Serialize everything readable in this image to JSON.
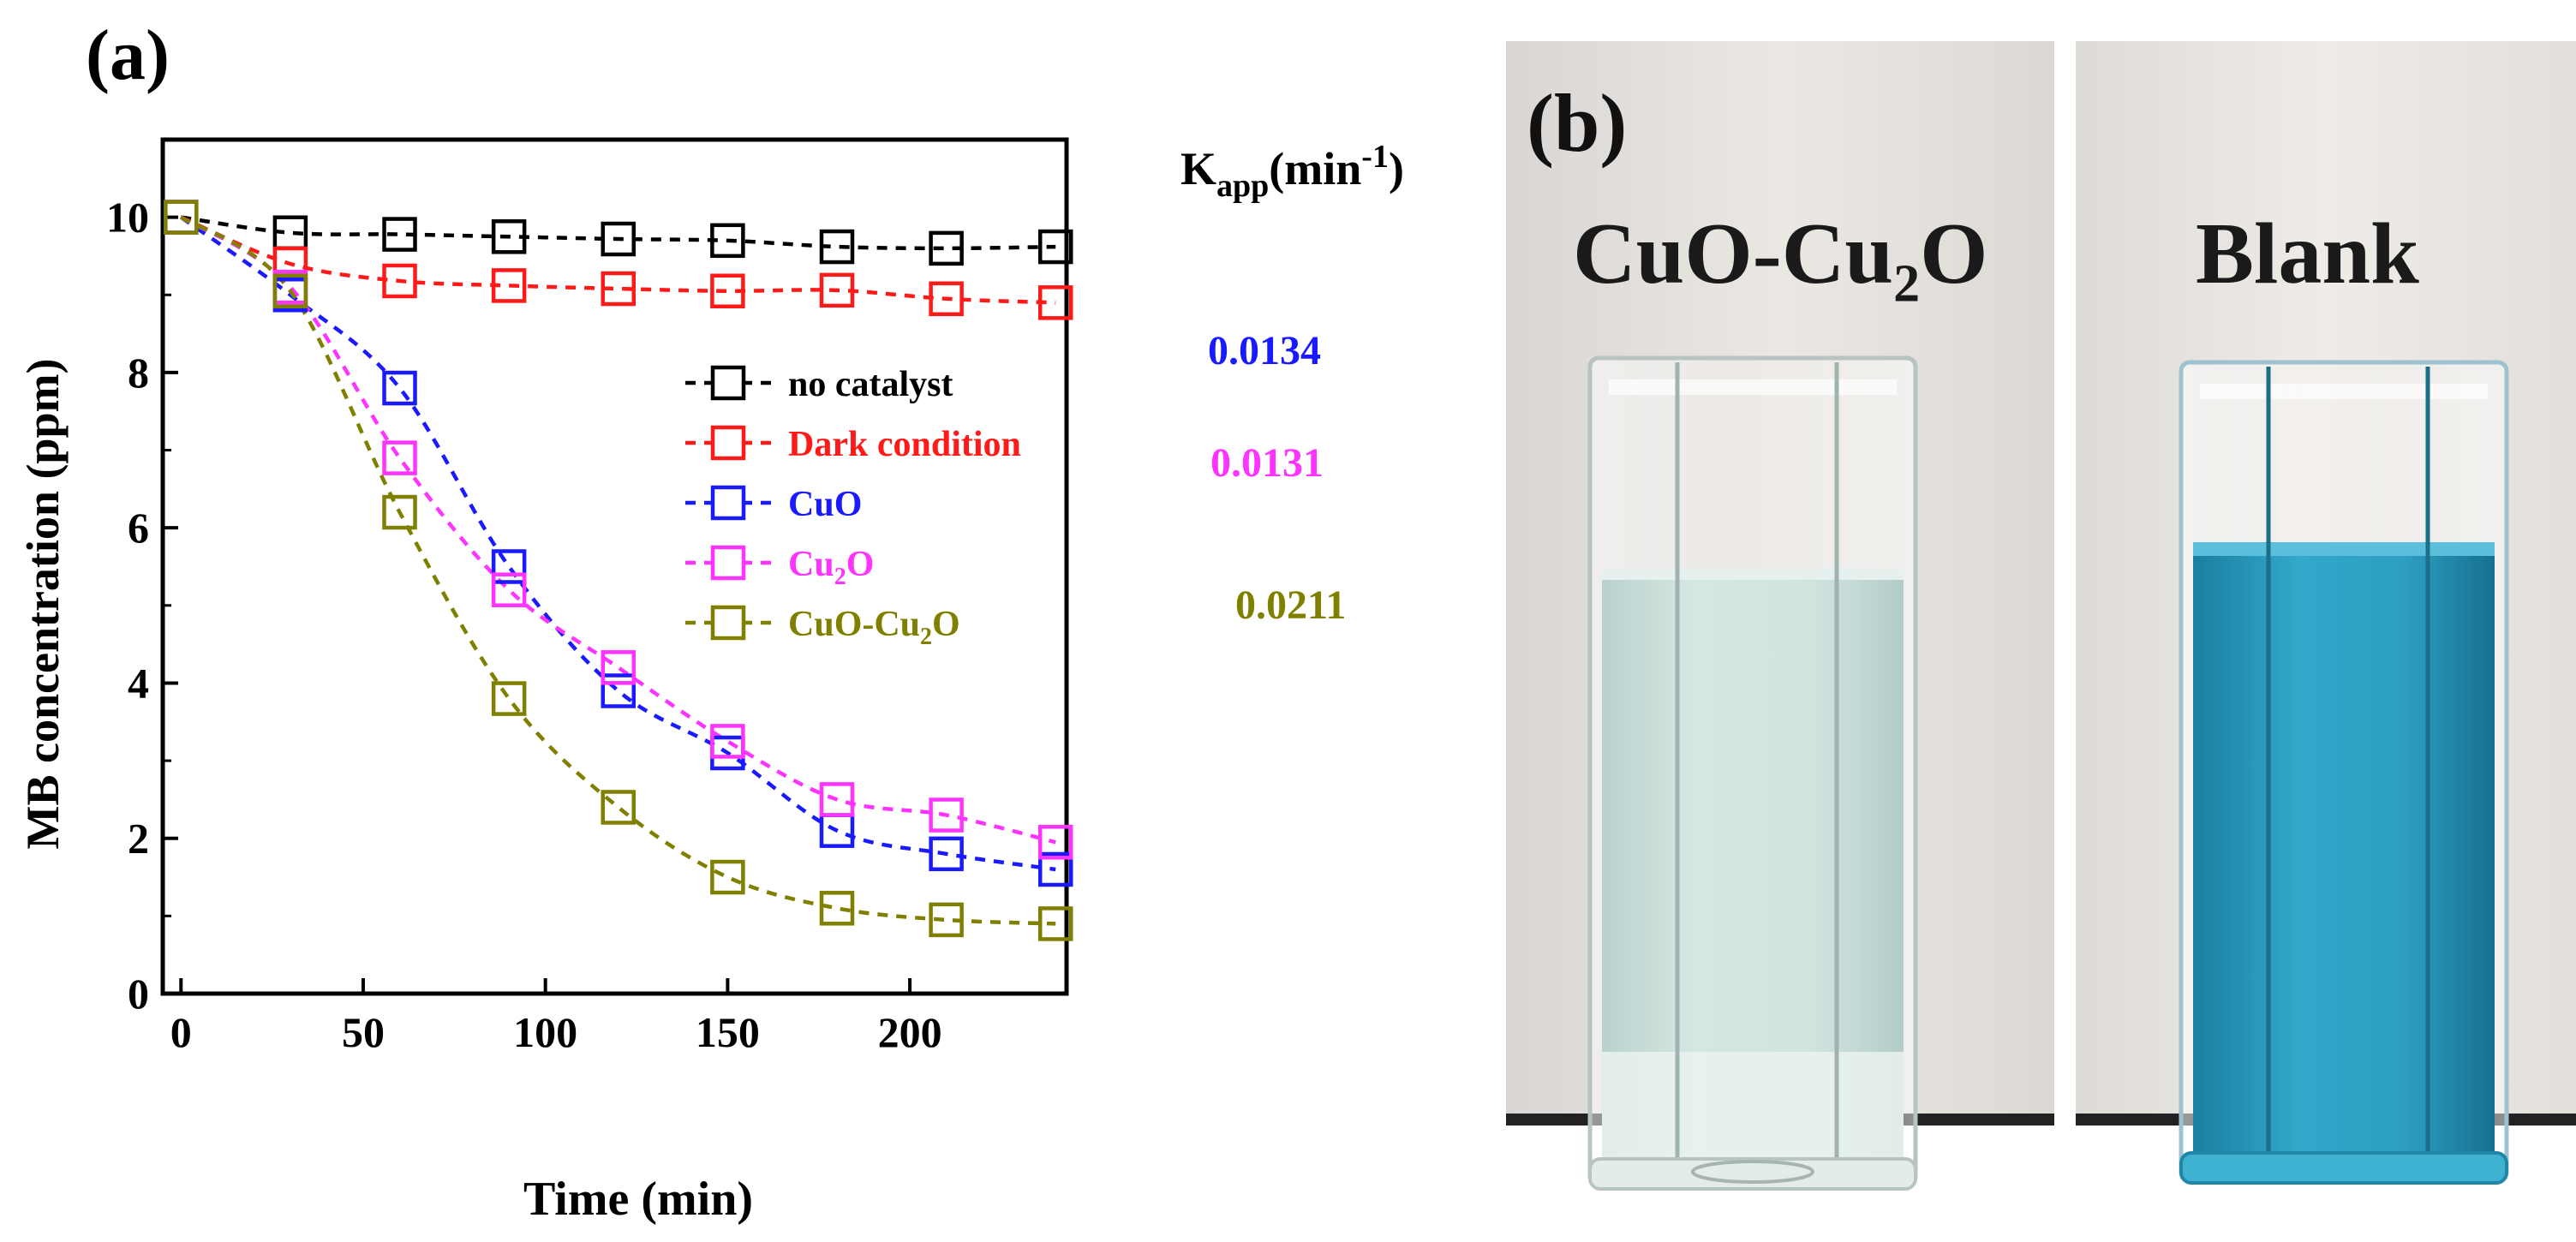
{
  "colors": {
    "no_catalyst": "#000000",
    "dark": "#ff1a1a",
    "cuo": "#1a1aff",
    "cu2o": "#ff33ff",
    "composite": "#808000",
    "mb_blue": "#2ea7c8",
    "mb_pale": "#cfe3df"
  },
  "chart_data": {
    "type": "line",
    "panel_label": "(a)",
    "xlabel": "Time (min)",
    "ylabel": "MB concentration (ppm)",
    "xlim": [
      -5,
      243
    ],
    "ylim": [
      0,
      11
    ],
    "xticks": [
      0,
      50,
      100,
      150,
      200
    ],
    "yticks": [
      0,
      2,
      4,
      6,
      8,
      10
    ],
    "x": [
      0,
      30,
      60,
      90,
      120,
      150,
      180,
      210,
      240
    ],
    "marker": "open-square",
    "line_style": "dashed",
    "series": [
      {
        "name": "no catalyst",
        "color_key": "no_catalyst",
        "values": [
          10.0,
          9.8,
          9.78,
          9.75,
          9.72,
          9.7,
          9.62,
          9.6,
          9.62
        ]
      },
      {
        "name": "Dark condition",
        "color_key": "dark",
        "values": [
          10.0,
          9.4,
          9.18,
          9.12,
          9.08,
          9.05,
          9.06,
          8.95,
          8.9
        ]
      },
      {
        "name": "CuO",
        "color_key": "cuo",
        "values": [
          10.0,
          9.0,
          7.8,
          5.5,
          3.9,
          3.1,
          2.1,
          1.8,
          1.6
        ]
      },
      {
        "name": "Cu2O",
        "name_base": "Cu",
        "name_sub": "2",
        "name_tail": "O",
        "color_key": "cu2o",
        "values": [
          10.0,
          9.1,
          6.9,
          5.2,
          4.2,
          3.25,
          2.5,
          2.3,
          1.95
        ]
      },
      {
        "name": "CuO-Cu2O",
        "name_base": "CuO-Cu",
        "name_sub": "2",
        "name_tail": "O",
        "color_key": "composite",
        "values": [
          10.0,
          9.05,
          6.2,
          3.8,
          2.4,
          1.5,
          1.1,
          0.95,
          0.9
        ]
      }
    ],
    "legend_position": "center-right",
    "kapp_header": {
      "base": "K",
      "sub": "app",
      "unit": "(min",
      "sup": "-1",
      "tail": ")"
    },
    "kapp_values": [
      {
        "value": "0.0134",
        "color_key": "cuo"
      },
      {
        "value": "0.0131",
        "color_key": "cu2o"
      },
      {
        "value": "0.0211",
        "color_key": "composite"
      }
    ]
  },
  "photo": {
    "panel_label": "(b)",
    "left_title": {
      "base": "CuO-Cu",
      "sub": "2",
      "tail": "O"
    },
    "right_title": "Blank"
  }
}
